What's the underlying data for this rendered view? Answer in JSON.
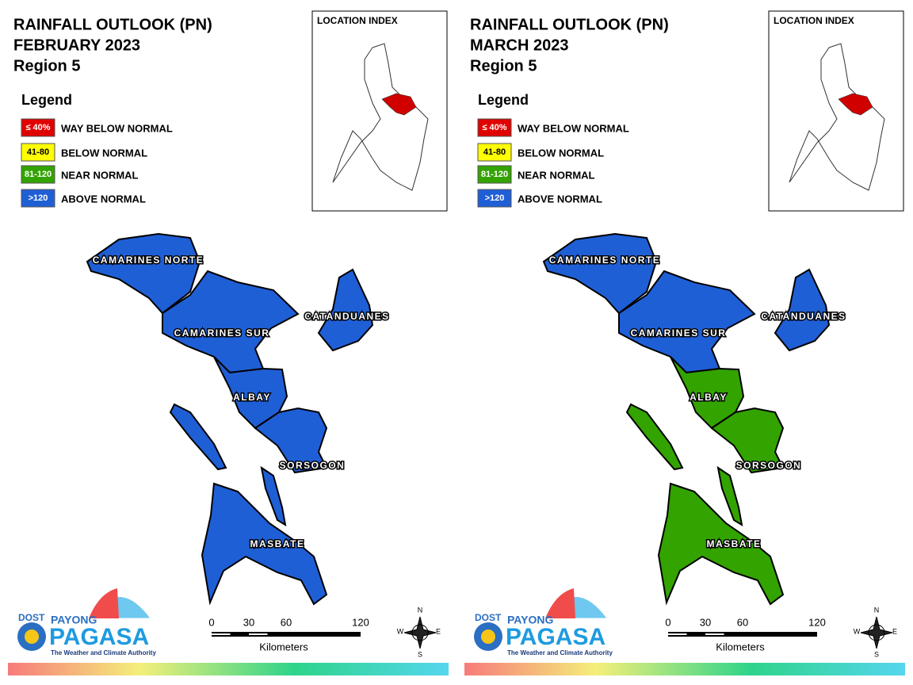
{
  "panels": [
    {
      "title_lines": [
        "RAINFALL OUTLOOK (PN)",
        "FEBRUARY 2023",
        "Region 5"
      ],
      "legend_title": "Legend",
      "legend": [
        {
          "code": "≤ 40%",
          "label": "WAY BELOW NORMAL",
          "color": "#e00000"
        },
        {
          "code": "41-80",
          "label": "BELOW NORMAL",
          "color": "#ffff00"
        },
        {
          "code": "81-120",
          "label": "NEAR NORMAL",
          "color": "#33a300"
        },
        {
          "code": ">120",
          "label": "ABOVE NORMAL",
          "color": "#1f5fd6"
        }
      ],
      "location_index": "LOCATION INDEX",
      "provinces": [
        {
          "name": "CAMARINES NORTE",
          "color": "#1f5fd6"
        },
        {
          "name": "CAMARINES SUR",
          "color": "#1f5fd6"
        },
        {
          "name": "CATANDUANES",
          "color": "#1f5fd6"
        },
        {
          "name": "ALBAY",
          "color": "#1f5fd6"
        },
        {
          "name": "SORSOGON",
          "color": "#1f5fd6"
        },
        {
          "name": "MASBATE",
          "color": "#1f5fd6"
        }
      ],
      "scale_ticks": [
        0,
        30,
        60,
        120
      ],
      "scale_unit": "Kilometers",
      "compass": [
        "N",
        "E",
        "S",
        "W"
      ],
      "logo": {
        "dost": "DOST",
        "payong": "PAYONG",
        "pagasa": "PAGASA",
        "tagline": "The Weather and Climate Authority"
      }
    },
    {
      "title_lines": [
        "RAINFALL OUTLOOK (PN)",
        "MARCH 2023",
        "Region 5"
      ],
      "legend_title": "Legend",
      "legend": [
        {
          "code": "≤ 40%",
          "label": "WAY BELOW NORMAL",
          "color": "#e00000"
        },
        {
          "code": "41-80",
          "label": "BELOW NORMAL",
          "color": "#ffff00"
        },
        {
          "code": "81-120",
          "label": "NEAR NORMAL",
          "color": "#33a300"
        },
        {
          "code": ">120",
          "label": "ABOVE NORMAL",
          "color": "#1f5fd6"
        }
      ],
      "location_index": "LOCATION INDEX",
      "provinces": [
        {
          "name": "CAMARINES NORTE",
          "color": "#1f5fd6"
        },
        {
          "name": "CAMARINES SUR",
          "color": "#1f5fd6"
        },
        {
          "name": "CATANDUANES",
          "color": "#1f5fd6"
        },
        {
          "name": "ALBAY",
          "color": "#33a300"
        },
        {
          "name": "SORSOGON",
          "color": "#33a300"
        },
        {
          "name": "MASBATE",
          "color": "#33a300"
        }
      ],
      "scale_ticks": [
        0,
        30,
        60,
        120
      ],
      "scale_unit": "Kilometers",
      "compass": [
        "N",
        "E",
        "S",
        "W"
      ],
      "logo": {
        "dost": "DOST",
        "payong": "PAYONG",
        "pagasa": "PAGASA",
        "tagline": "The Weather and Climate Authority"
      }
    }
  ]
}
